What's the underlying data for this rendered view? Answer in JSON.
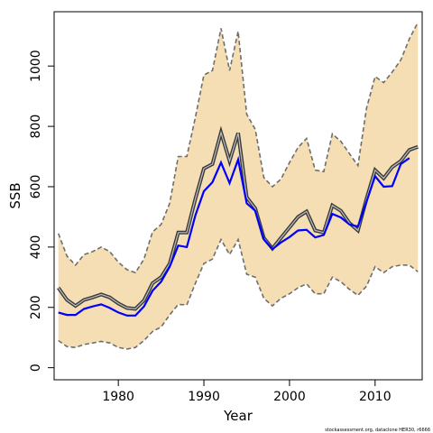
{
  "chart_data": {
    "type": "line",
    "xlabel": "Year",
    "ylabel": "SSB",
    "footnote": "stockassessment.org, dataclone HER30, r6666",
    "xlim": [
      1972.5,
      2015.5
    ],
    "ylim": [
      -40,
      1180
    ],
    "x_ticks": [
      1980,
      1990,
      2000,
      2010
    ],
    "y_ticks": [
      0,
      200,
      400,
      600,
      800,
      1000
    ],
    "grid": false,
    "legend": "none",
    "colors": {
      "band": "#f5deb3",
      "bound_line": "#6e6e6e",
      "estimate_line": "#3a3a3a",
      "comparison_line": "#0000ff"
    },
    "x": [
      1973,
      1974,
      1975,
      1976,
      1977,
      1978,
      1979,
      1980,
      1981,
      1982,
      1983,
      1984,
      1985,
      1986,
      1987,
      1988,
      1989,
      1990,
      1991,
      1992,
      1993,
      1994,
      1995,
      1996,
      1997,
      1998,
      1999,
      2000,
      2001,
      2002,
      2003,
      2004,
      2005,
      2006,
      2007,
      2008,
      2009,
      2010,
      2011,
      2012,
      2013,
      2014,
      2015
    ],
    "series": [
      {
        "role": "upper_bound",
        "values": [
          445,
          370,
          340,
          375,
          385,
          400,
          385,
          350,
          325,
          315,
          360,
          450,
          475,
          545,
          700,
          700,
          830,
          970,
          985,
          1125,
          985,
          1115,
          840,
          790,
          630,
          600,
          625,
          680,
          730,
          760,
          655,
          650,
          775,
          750,
          710,
          670,
          860,
          965,
          945,
          980,
          1020,
          1090,
          1145
        ]
      },
      {
        "role": "estimate",
        "values": [
          265,
          225,
          205,
          225,
          233,
          243,
          233,
          213,
          198,
          195,
          223,
          280,
          300,
          345,
          448,
          448,
          560,
          660,
          675,
          780,
          685,
          778,
          565,
          528,
          430,
          395,
          430,
          465,
          500,
          518,
          455,
          448,
          538,
          520,
          480,
          455,
          560,
          655,
          628,
          665,
          685,
          722,
          732
        ]
      },
      {
        "role": "lower_bound",
        "values": [
          90,
          70,
          67,
          77,
          82,
          87,
          82,
          67,
          62,
          67,
          90,
          120,
          135,
          175,
          210,
          208,
          280,
          345,
          360,
          425,
          375,
          425,
          310,
          300,
          230,
          205,
          230,
          245,
          265,
          278,
          245,
          245,
          300,
          285,
          260,
          240,
          270,
          335,
          315,
          335,
          340,
          340,
          318
        ]
      },
      {
        "role": "comparison",
        "values": [
          183,
          175,
          175,
          195,
          203,
          210,
          198,
          183,
          173,
          173,
          203,
          255,
          285,
          335,
          405,
          400,
          505,
          585,
          615,
          680,
          612,
          690,
          545,
          520,
          425,
          393,
          415,
          433,
          455,
          457,
          432,
          440,
          510,
          498,
          475,
          468,
          550,
          635,
          600,
          602,
          675,
          695,
          null
        ]
      }
    ]
  }
}
